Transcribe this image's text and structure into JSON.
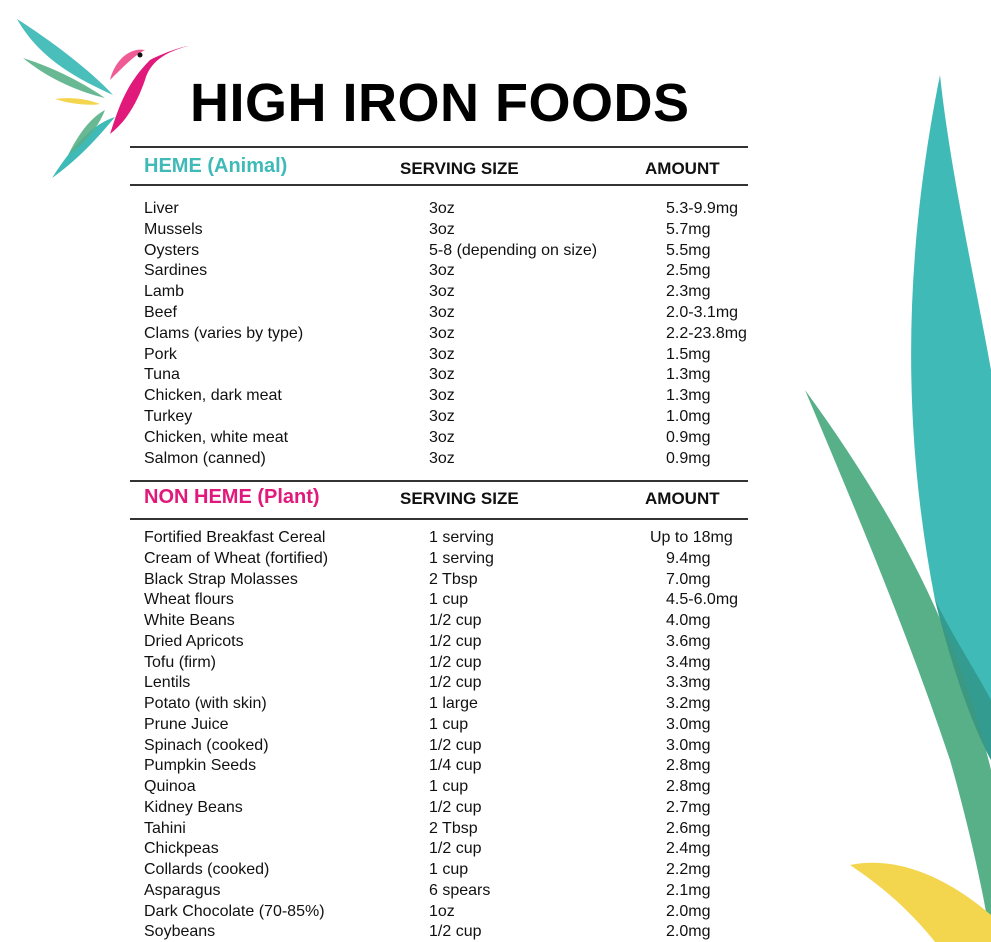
{
  "title": "HIGH IRON FOODS",
  "colors": {
    "heme": "#3fbab7",
    "non_heme": "#e0197a",
    "teal_leaf": "#3fbab7",
    "green_leaf": "#58b088",
    "yellow_leaf": "#f3d54e"
  },
  "logo": {
    "icon": "hummingbird-logo"
  },
  "heme": {
    "heading": "HEME (Animal)",
    "serving_header": "SERVING SIZE",
    "amount_header": "AMOUNT",
    "rows": [
      {
        "food": "Liver",
        "serving": "3oz",
        "amount": "5.3-9.9mg"
      },
      {
        "food": "Mussels",
        "serving": "3oz",
        "amount": "5.7mg"
      },
      {
        "food": "Oysters",
        "serving": "5-8 (depending on size)",
        "amount": "5.5mg"
      },
      {
        "food": "Sardines",
        "serving": "3oz",
        "amount": "2.5mg"
      },
      {
        "food": "Lamb",
        "serving": "3oz",
        "amount": "2.3mg"
      },
      {
        "food": "Beef",
        "serving": "3oz",
        "amount": "2.0-3.1mg"
      },
      {
        "food": "Clams (varies by type)",
        "serving": "3oz",
        "amount": "2.2-23.8mg"
      },
      {
        "food": "Pork",
        "serving": "3oz",
        "amount": "1.5mg"
      },
      {
        "food": "Tuna",
        "serving": "3oz",
        "amount": "1.3mg"
      },
      {
        "food": "Chicken, dark meat",
        "serving": "3oz",
        "amount": "1.3mg"
      },
      {
        "food": "Turkey",
        "serving": "3oz",
        "amount": "1.0mg"
      },
      {
        "food": "Chicken, white meat",
        "serving": "3oz",
        "amount": "0.9mg"
      },
      {
        "food": "Salmon (canned)",
        "serving": "3oz",
        "amount": "0.9mg"
      }
    ]
  },
  "non_heme": {
    "heading": "NON HEME (Plant)",
    "serving_header": "SERVING SIZE",
    "amount_header": "AMOUNT",
    "rows": [
      {
        "food": "Fortified Breakfast Cereal",
        "serving": "1 serving",
        "amount": "Up to 18mg"
      },
      {
        "food": "Cream of Wheat (fortified)",
        "serving": "1 serving",
        "amount": "9.4mg"
      },
      {
        "food": "Black Strap Molasses",
        "serving": "2 Tbsp",
        "amount": "7.0mg"
      },
      {
        "food": "Wheat flours",
        "serving": "1 cup",
        "amount": "4.5-6.0mg"
      },
      {
        "food": "White Beans",
        "serving": "1/2 cup",
        "amount": "4.0mg"
      },
      {
        "food": "Dried Apricots",
        "serving": "1/2 cup",
        "amount": "3.6mg"
      },
      {
        "food": "Tofu (firm)",
        "serving": "1/2 cup",
        "amount": "3.4mg"
      },
      {
        "food": "Lentils",
        "serving": "1/2 cup",
        "amount": "3.3mg"
      },
      {
        "food": "Potato (with skin)",
        "serving": "1 large",
        "amount": "3.2mg"
      },
      {
        "food": "Prune Juice",
        "serving": "1 cup",
        "amount": "3.0mg"
      },
      {
        "food": "Spinach (cooked)",
        "serving": "1/2 cup",
        "amount": "3.0mg"
      },
      {
        "food": "Pumpkin Seeds",
        "serving": "1/4 cup",
        "amount": "2.8mg"
      },
      {
        "food": "Quinoa",
        "serving": "1 cup",
        "amount": "2.8mg"
      },
      {
        "food": "Kidney Beans",
        "serving": "1/2 cup",
        "amount": "2.7mg"
      },
      {
        "food": "Tahini",
        "serving": "2 Tbsp",
        "amount": "2.6mg"
      },
      {
        "food": "Chickpeas",
        "serving": "1/2 cup",
        "amount": "2.4mg"
      },
      {
        "food": "Collards (cooked)",
        "serving": "1 cup",
        "amount": "2.2mg"
      },
      {
        "food": "Asparagus",
        "serving": "6 spears",
        "amount": "2.1mg"
      },
      {
        "food": "Dark Chocolate (70-85%)",
        "serving": "1oz",
        "amount": "2.0mg"
      },
      {
        "food": "Soybeans",
        "serving": "1/2 cup",
        "amount": "2.0mg"
      }
    ]
  }
}
